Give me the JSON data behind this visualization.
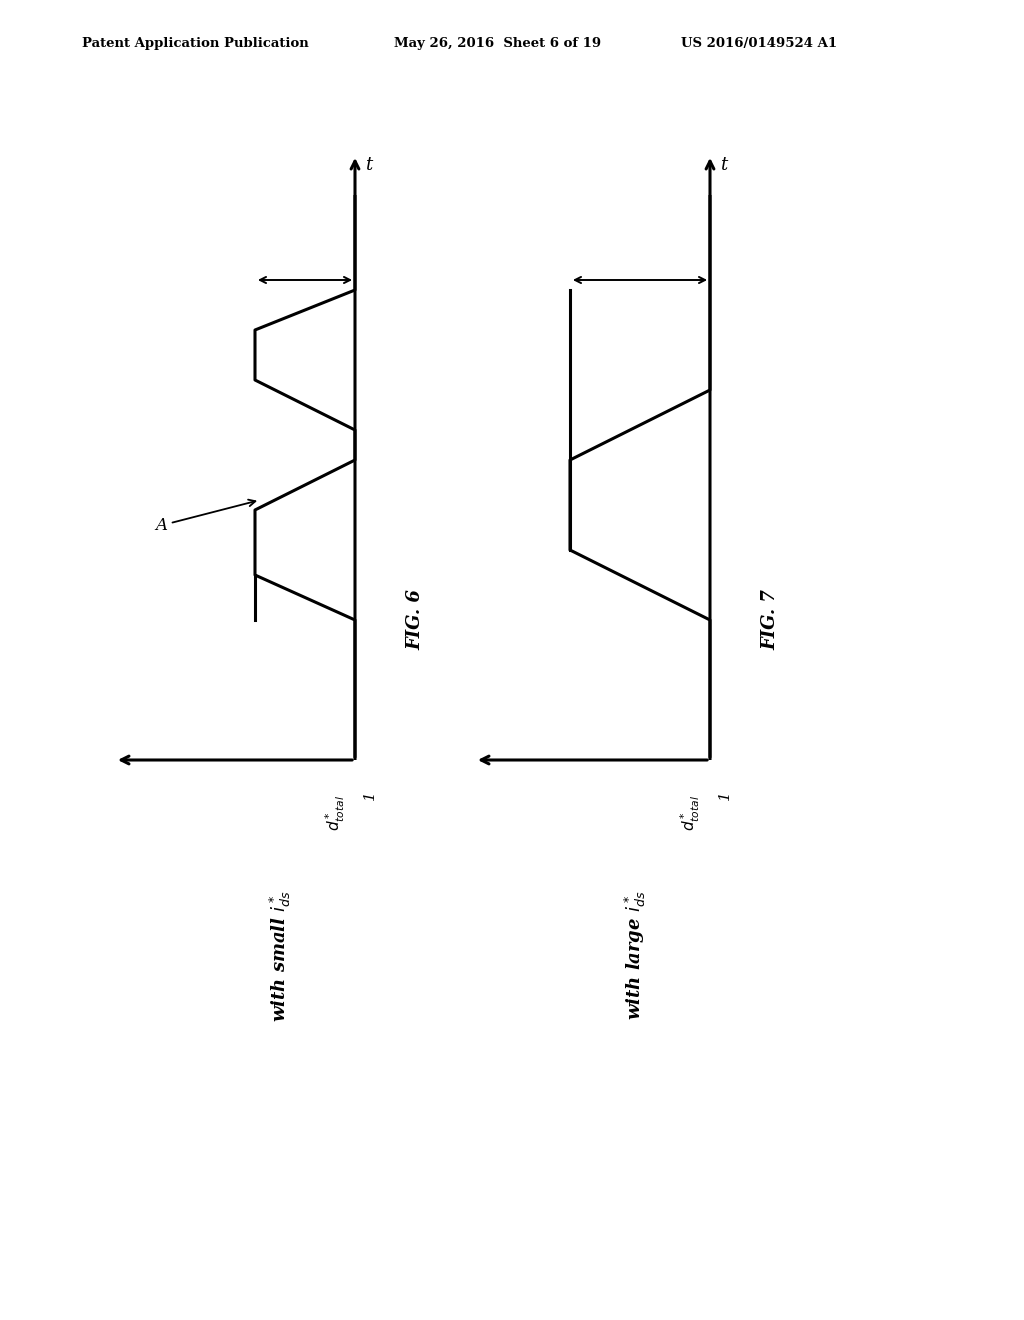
{
  "header_left": "Patent Application Publication",
  "header_mid": "May 26, 2016  Sheet 6 of 19",
  "header_right": "US 2016/0149524 A1",
  "fig6_label": "FIG. 6",
  "fig7_label": "FIG. 7",
  "fig6_subtitle": "with small $i_{ds}^*$",
  "fig7_subtitle": "with large $i_{ds}^*$",
  "xlabel_rotated": "$d_{total}^*$",
  "ylabel": "t",
  "background_color": "#ffffff",
  "line_color": "#000000"
}
